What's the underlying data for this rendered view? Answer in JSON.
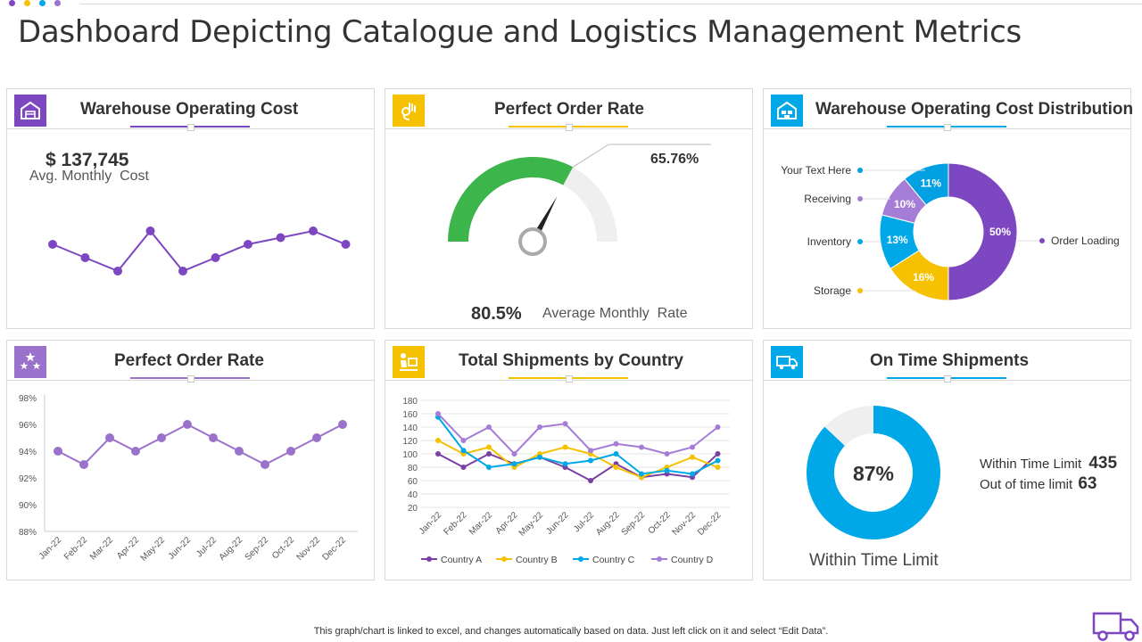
{
  "page": {
    "title": "Dashboard Depicting Catalogue  and Logistics Management Metrics",
    "footnote": "This graph/chart is linked to excel,  and changes automatically based on data. Just left click on it and select “Edit Data”."
  },
  "colors": {
    "purple": "#7e47c2",
    "yellow": "#f5c100",
    "blue": "#00a8e8",
    "lavender": "#9b72cb",
    "green": "#3cb54a"
  },
  "panels": {
    "warehouse_cost": {
      "title": "Warehouse Operating Cost",
      "value": "$ 137,745",
      "caption": "Avg. Monthly  Cost",
      "icon": "warehouse-icon"
    },
    "order_rate_gauge": {
      "title": "Perfect Order Rate",
      "pointer_label": "65.76%",
      "value": "80.5%",
      "caption": "Average Monthly  Rate",
      "icon": "ok-hand-icon"
    },
    "cost_distribution": {
      "title": "Warehouse Operating Cost Distribution",
      "icon": "warehouse-building-icon"
    },
    "order_rate_line": {
      "title": "Perfect Order Rate",
      "icon": "stars-icon"
    },
    "shipments_country": {
      "title": "Total Shipments by Country",
      "icon": "delivery-person-icon"
    },
    "on_time": {
      "title": "On Time Shipments",
      "value": "87%",
      "caption": "Within Time Limit",
      "within_label": "Within Time Limit",
      "within_value": "435",
      "out_label": "Out of time limit",
      "out_value": "63",
      "icon": "delivery-truck-icon"
    }
  },
  "chart_data": [
    {
      "type": "line",
      "title": "Warehouse Operating Cost",
      "values": [
        6,
        5,
        4,
        7,
        4,
        5,
        6,
        6.5,
        7,
        6
      ],
      "note": "relative values, no axis shown"
    },
    {
      "type": "gauge",
      "title": "Perfect Order Rate",
      "value": 65.76,
      "max": 100
    },
    {
      "type": "pie",
      "title": "Warehouse Operating Cost Distribution",
      "labels": [
        "Order Loading",
        "Storage",
        "Inventory",
        "Receiving",
        "Your Text Here"
      ],
      "values": [
        50,
        16,
        13,
        10,
        11
      ],
      "value_labels": [
        "50%",
        "16%",
        "13%",
        "10%",
        "11%"
      ],
      "colors": [
        "#7e47c2",
        "#f5c100",
        "#00a8e8",
        "#a57dd6",
        "#00a0e3"
      ]
    },
    {
      "type": "line",
      "title": "Perfect Order Rate",
      "categories": [
        "Jan-22",
        "Feb-22",
        "Mar-22",
        "Apr-22",
        "May-22",
        "Jun-22",
        "Jul-22",
        "Aug-22",
        "Sep-22",
        "Oct-22",
        "Nov-22",
        "Dec-22"
      ],
      "values": [
        94,
        93,
        95,
        94,
        95,
        96,
        95,
        94,
        93,
        94,
        95,
        96
      ],
      "yticks": [
        "88%",
        "90%",
        "92%",
        "94%",
        "96%",
        "98%"
      ],
      "ylim": [
        88,
        98
      ]
    },
    {
      "type": "line",
      "title": "Total Shipments by Country",
      "categories": [
        "Jan-22",
        "Feb-22",
        "Mar-22",
        "Apr-22",
        "May-22",
        "Jun-22",
        "Jul-22",
        "Aug-22",
        "Sep-22",
        "Oct-22",
        "Nov-22",
        "Dec-22"
      ],
      "yticks": [
        "20",
        "40",
        "60",
        "80",
        "100",
        "120",
        "140",
        "160",
        "180"
      ],
      "ylim": [
        20,
        180
      ],
      "series": [
        {
          "name": "Country A",
          "color": "#7a3fa3",
          "values": [
            100,
            80,
            100,
            85,
            95,
            80,
            60,
            85,
            65,
            70,
            65,
            100
          ]
        },
        {
          "name": "Country B",
          "color": "#f5c100",
          "values": [
            120,
            100,
            110,
            80,
            100,
            110,
            100,
            80,
            65,
            80,
            95,
            80
          ]
        },
        {
          "name": "Country C",
          "color": "#00a8e8",
          "values": [
            155,
            105,
            80,
            85,
            95,
            85,
            90,
            100,
            70,
            75,
            70,
            90
          ]
        },
        {
          "name": "Country D",
          "color": "#a57dd6",
          "values": [
            160,
            120,
            140,
            100,
            140,
            145,
            105,
            115,
            110,
            100,
            110,
            140
          ]
        }
      ]
    },
    {
      "type": "pie",
      "title": "On Time Shipments",
      "labels": [
        "Within Time Limit",
        "Out of time limit"
      ],
      "values": [
        87,
        13
      ],
      "value_label": "87%"
    }
  ]
}
